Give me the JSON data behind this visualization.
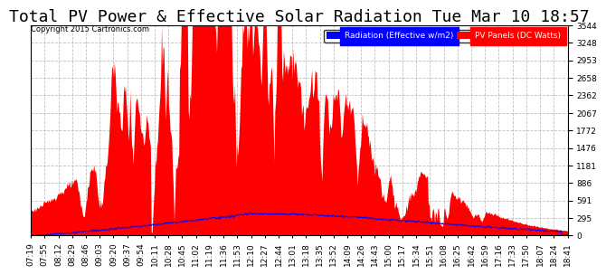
{
  "title": "Total PV Power & Effective Solar Radiation Tue Mar 10 18:57",
  "copyright": "Copyright 2015 Cartronics.com",
  "legend_blue": "Radiation (Effective w/m2)",
  "legend_red": "PV Panels (DC Watts)",
  "ymin": 0.0,
  "ymax": 3543.7,
  "yticks": [
    0.0,
    295.3,
    590.6,
    885.9,
    1181.2,
    1476.5,
    1771.8,
    2067.2,
    2362.5,
    2657.8,
    2953.1,
    3248.4,
    3543.7
  ],
  "background_color": "#ffffff",
  "grid_color": "#b0b0b0",
  "fill_color": "#ff0000",
  "line_color": "#0000ff",
  "title_fontsize": 13,
  "tick_fontsize": 6.5
}
